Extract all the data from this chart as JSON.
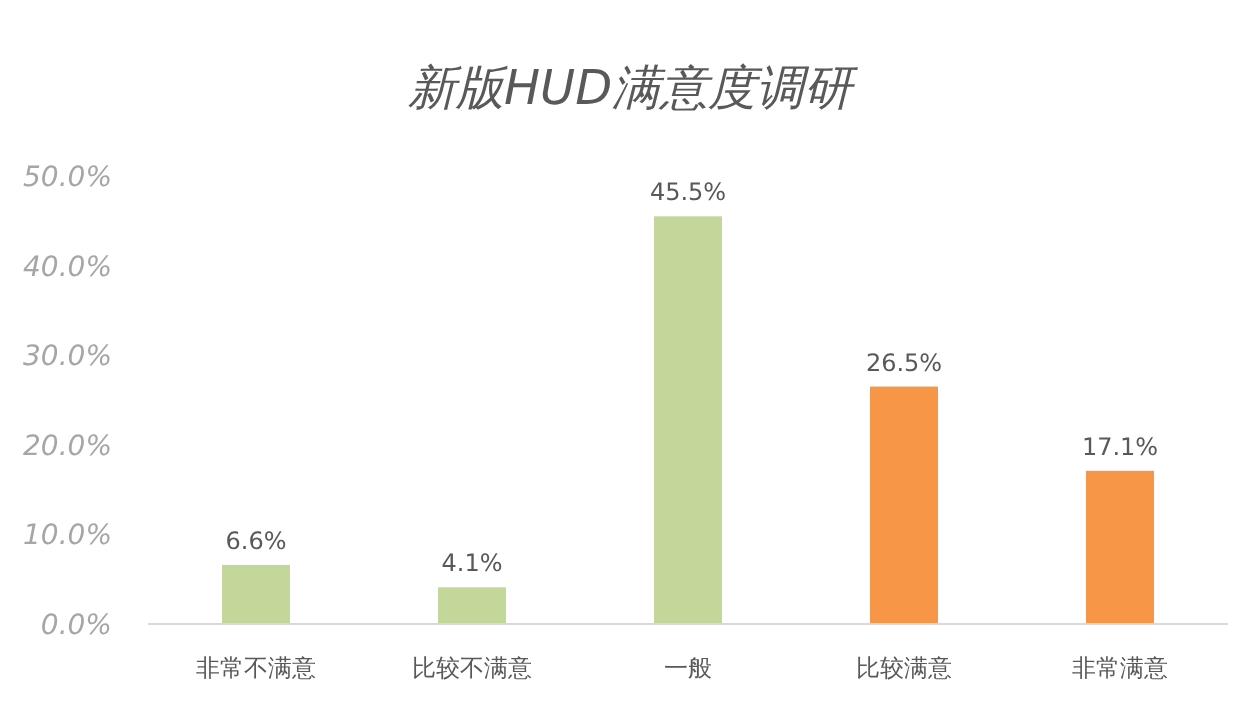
{
  "chart_data": {
    "type": "bar",
    "title": "新版HUD满意度调研",
    "categories": [
      "非常不满意",
      "比较不满意",
      "一般",
      "比较满意",
      "非常满意"
    ],
    "values": [
      6.6,
      4.1,
      45.5,
      26.5,
      17.1
    ],
    "colors": [
      "#c4d79b",
      "#c4d79b",
      "#c4d79b",
      "#f79646",
      "#f79646"
    ],
    "value_labels": [
      "6.6%",
      "4.1%",
      "45.5%",
      "26.5%",
      "17.1%"
    ],
    "ylim": [
      0,
      50
    ],
    "yticks": [
      {
        "value": 0,
        "label": "0.0%"
      },
      {
        "value": 10,
        "label": "10.0%"
      },
      {
        "value": 20,
        "label": "20.0%"
      },
      {
        "value": 30,
        "label": "30.0%"
      },
      {
        "value": 40,
        "label": "40.0%"
      },
      {
        "value": 50,
        "label": "50.0%"
      }
    ]
  }
}
